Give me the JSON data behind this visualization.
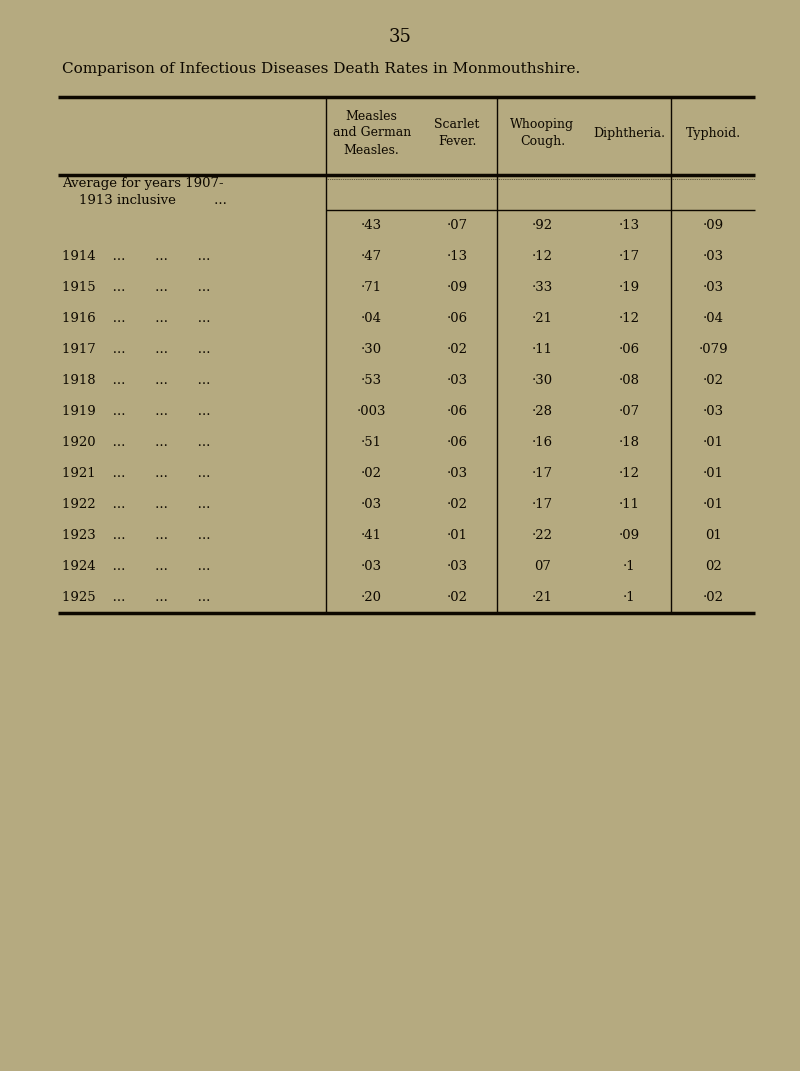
{
  "page_number": "35",
  "title_line1": "Comparison of Infectious Diseases Death Rates in Monmouthshire.",
  "col_headers": [
    "Measles\nand German\nMeasles.",
    "Scarlet\nFever.",
    "Whooping\nCough.",
    "Diphtheria.",
    "Typhoid."
  ],
  "avg_label_line1": "Average for years 1907-",
  "avg_label_line2": "    1913 inclusive         ...",
  "year_labels": [
    "1914    ...       ...       ...",
    "1915    ...       ...       ...",
    "1916    ...       ...       ...",
    "1917    ...       ...       ...",
    "1918    ...       ...       ...",
    "1919    ...       ...       ...",
    "1920    ...       ...       ...",
    "1921    ...       ...       ...",
    "1922    ...       ...       ...",
    "1923    ...       ...       ...",
    "1924    ...       ...       ...",
    "1925    ...       ...       ..."
  ],
  "data": [
    [
      "·43",
      "·07",
      "·92",
      "·13",
      "·09"
    ],
    [
      "·47",
      "·13",
      "·12",
      "·17",
      "·03"
    ],
    [
      "·71",
      "·09",
      "·33",
      "·19",
      "·03"
    ],
    [
      "·04",
      "·06",
      "·21",
      "·12",
      "·04"
    ],
    [
      "·30",
      "·02",
      "·11",
      "·06",
      "·079"
    ],
    [
      "·53",
      "·03",
      "·30",
      "·08",
      "·02"
    ],
    [
      "·003",
      "·06",
      "·28",
      "·07",
      "·03"
    ],
    [
      "·51",
      "·06",
      "·16",
      "·18",
      "·01"
    ],
    [
      "·02",
      "·03",
      "·17",
      "·12",
      "·01"
    ],
    [
      "·03",
      "·02",
      "·17",
      "·11",
      "·01"
    ],
    [
      "·41",
      "·01",
      "·22",
      "·09",
      "01"
    ],
    [
      "·03",
      "·03",
      "07",
      "·1",
      "02"
    ],
    [
      "·20",
      "·02",
      "·21",
      "·1",
      "·02"
    ]
  ],
  "bg_color": "#b5aa80",
  "text_color": "#0d0800",
  "line_color": "#0d0800"
}
